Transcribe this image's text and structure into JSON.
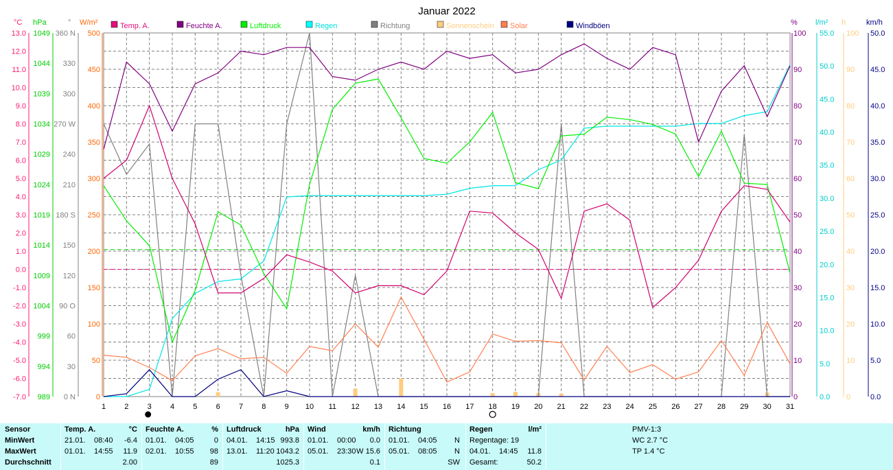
{
  "chart_data": {
    "type": "line",
    "title": "Januar 2022",
    "categories": [
      "1",
      "2",
      "3",
      "4",
      "5",
      "6",
      "7",
      "8",
      "9",
      "10",
      "11",
      "12",
      "13",
      "14",
      "15",
      "16",
      "17",
      "18",
      "19",
      "20",
      "21",
      "22",
      "23",
      "24",
      "25",
      "26",
      "27",
      "28",
      "29",
      "30",
      "31"
    ],
    "axes": {
      "left": [
        {
          "unit": "°C",
          "color": "#ff1a75",
          "min": -7,
          "max": 13,
          "ticks": [
            "13.0",
            "12.0",
            "11.0",
            "10.0",
            "9.0",
            "8.0",
            "7.0",
            "6.0",
            "5.0",
            "4.0",
            "3.0",
            "2.0",
            "1.0",
            "0.0",
            "-1.0",
            "-2.0",
            "-3.0",
            "-4.0",
            "-5.0",
            "-6.0",
            "-7.0"
          ]
        },
        {
          "unit": "hPa",
          "color": "#00cc00",
          "ticks": [
            "1049",
            "1044",
            "1039",
            "1034",
            "1029",
            "1024",
            "1019",
            "1014",
            "1009",
            "1004",
            "999",
            "994",
            "989"
          ]
        },
        {
          "unit": "°",
          "color": "#808080",
          "ticks": [
            "360 N",
            "330",
            "300",
            "270 W",
            "240",
            "210",
            "180 S",
            "150",
            "120",
            "90 O",
            "60",
            "30",
            "0 N"
          ]
        },
        {
          "unit": "W/m²",
          "color": "#ff6600",
          "ticks": [
            "500",
            "450",
            "400",
            "350",
            "300",
            "250",
            "200",
            "150",
            "100",
            "50",
            "0"
          ]
        }
      ],
      "right": [
        {
          "unit": "%",
          "color": "#800080",
          "ticks": [
            "100",
            "90",
            "80",
            "70",
            "60",
            "50",
            "40",
            "30",
            "20",
            "10",
            "0"
          ]
        },
        {
          "unit": "l/m²",
          "color": "#00cccc",
          "ticks": [
            "55.0",
            "50.0",
            "45.0",
            "40.0",
            "35.0",
            "30.0",
            "25.0",
            "20.0",
            "15.0",
            "10.0",
            "5.0",
            "0.0"
          ]
        },
        {
          "unit": "h",
          "color": "#ffcc80",
          "ticks": [
            "100",
            "90",
            "80",
            "70",
            "60",
            "50",
            "40",
            "30",
            "20",
            "10",
            "0"
          ]
        },
        {
          "unit": "km/h",
          "color": "#000080",
          "ticks": [
            "50.0",
            "45.0",
            "40.0",
            "35.0",
            "30.0",
            "25.0",
            "20.0",
            "15.0",
            "10.0",
            "5.0",
            "0.0"
          ]
        }
      ]
    },
    "legend": [
      {
        "name": "Temp. A.",
        "color": "#e0107a"
      },
      {
        "name": "Feuchte A.",
        "color": "#800080"
      },
      {
        "name": "Luftdruck",
        "color": "#00ee00"
      },
      {
        "name": "Regen",
        "color": "#00ffff"
      },
      {
        "name": "Richtung",
        "color": "#808080"
      },
      {
        "name": "Sonnenschein",
        "color": "#ffcc80"
      },
      {
        "name": "Solar",
        "color": "#ff7f50"
      },
      {
        "name": "Windböen",
        "color": "#000080"
      }
    ],
    "series": [
      {
        "name": "Temp. A.",
        "color": "#d0006f",
        "unit": "°C",
        "values": [
          5.0,
          6.0,
          9.0,
          5.0,
          2.5,
          -1.3,
          -1.3,
          -0.5,
          0.8,
          0.4,
          -0.1,
          -1.3,
          -0.9,
          -0.9,
          -1.4,
          -0.1,
          3.2,
          3.1,
          2.0,
          1.1,
          -1.6,
          3.2,
          3.6,
          2.7,
          -2.1,
          -1.0,
          0.5,
          3.2,
          4.6,
          4.4,
          2.6
        ]
      },
      {
        "name": "Feuchte A.",
        "color": "#800080",
        "unit": "%",
        "values": [
          68,
          92,
          86,
          73,
          86,
          89,
          95,
          94,
          96,
          96,
          88,
          87,
          90,
          92,
          90,
          95,
          93,
          94,
          89,
          90,
          94,
          97,
          93,
          90,
          96,
          94,
          70,
          84,
          91,
          77,
          91
        ]
      },
      {
        "name": "Luftdruck",
        "color": "#00ee00",
        "unit": "hPa",
        "values": [
          1023.8,
          1018.0,
          1013.9,
          998.0,
          1006.5,
          1019.5,
          1017.3,
          1009.3,
          1003.5,
          1024.0,
          1036.4,
          1040.7,
          1041.4,
          1035.0,
          1028.3,
          1027.5,
          1031.0,
          1035.9,
          1024.3,
          1023.3,
          1032.0,
          1032.3,
          1035.1,
          1034.7,
          1033.9,
          1032.3,
          1025.3,
          1032.8,
          1024.2,
          1024.0,
          1009.4
        ]
      },
      {
        "name": "Regen",
        "color": "#00e5e5",
        "unit": "l/m²",
        "values": [
          0.0,
          0.0,
          1.1,
          11.8,
          15.6,
          17.4,
          17.8,
          20.5,
          30.2,
          30.4,
          30.4,
          30.4,
          30.4,
          30.4,
          30.4,
          30.6,
          31.5,
          31.9,
          31.9,
          34.3,
          35.8,
          40.6,
          40.9,
          40.9,
          40.9,
          40.9,
          41.3,
          41.3,
          42.5,
          43.1,
          50.2
        ]
      },
      {
        "name": "Richtung",
        "color": "#808080",
        "unit": "°",
        "values": [
          270,
          220,
          250,
          0,
          270,
          270,
          120,
          0,
          270,
          360,
          0,
          120,
          0,
          0,
          0,
          0,
          0,
          0,
          0,
          0,
          270,
          0,
          0,
          0,
          0,
          0,
          0,
          0,
          260,
          0,
          0
        ]
      },
      {
        "name": "Solar",
        "color": "#ff7f50",
        "unit": "W/m²",
        "values": [
          57,
          54,
          40,
          22,
          56,
          66,
          52,
          54,
          32,
          69,
          63,
          100,
          68,
          137,
          79,
          20,
          34,
          86,
          76,
          77,
          74,
          23,
          69,
          33,
          44,
          24,
          34,
          77,
          29,
          102,
          45
        ]
      },
      {
        "name": "Windböen",
        "color": "#000080",
        "unit": "km/h",
        "values": [
          0,
          0.4,
          3.7,
          0,
          0,
          2.4,
          3.7,
          0,
          0.8,
          0,
          0,
          0,
          0,
          0,
          0,
          0,
          0,
          0,
          0,
          0,
          0,
          0,
          0,
          0,
          0,
          0,
          0,
          0,
          0,
          0,
          0
        ]
      },
      {
        "name": "Sonnenschein",
        "color": "#ffcc80",
        "unit": "h",
        "type": "bar",
        "values": [
          0,
          0,
          0,
          0,
          0,
          1.2,
          0,
          0,
          0,
          0,
          0,
          2.2,
          0,
          5.0,
          0,
          0,
          0,
          1.0,
          1.3,
          1.0,
          0.8,
          0,
          0,
          0,
          0,
          0,
          0,
          0,
          0,
          1.1,
          0
        ]
      }
    ],
    "reference_lines": [
      {
        "color": "#00cc00",
        "value": 1013.25,
        "style": "dashed"
      },
      {
        "color": "#e0107a",
        "value": 0,
        "style": "dashed"
      }
    ],
    "moon_phases": [
      {
        "day": "3",
        "phase": "new"
      },
      {
        "day": "18",
        "phase": "full"
      }
    ],
    "grid": true
  },
  "stats": {
    "sensor": {
      "title": "Sensor",
      "rows": [
        "MinWert",
        "MaxWert",
        "Durchschnitt"
      ]
    },
    "temp": {
      "title": "Temp. A.",
      "unit": "°C",
      "min_date": "21.01.",
      "min_time": "08:40",
      "min": "-6.4",
      "max_date": "01.01.",
      "max_time": "14:55",
      "max": "11.9",
      "avg": "2.00"
    },
    "feuchte": {
      "title": "Feuchte A.",
      "unit": "%",
      "min_date": "01.01.",
      "min_time": "04:05",
      "min": "0",
      "max_date": "02.01.",
      "max_time": "10:55",
      "max": "98",
      "avg": "89"
    },
    "luftdruck": {
      "title": "Luftdruck",
      "unit": "hPa",
      "min_date": "04.01.",
      "min_time": "14:15",
      "min": "993.8",
      "max_date": "13.01.",
      "max_time": "11:20",
      "max": "1043.2",
      "avg": "1025.3"
    },
    "wind": {
      "title": "Wind",
      "unit": "km/h",
      "min_date": "01.01.",
      "min_time": "00:00",
      "min": "0.0",
      "max_date": "05.01.",
      "max_time": "23:30",
      "max": "W 15.6",
      "avg": "0.1"
    },
    "richtung": {
      "title": "Richtung",
      "min_date": "01.01.",
      "min_time": "04:05",
      "min": "N",
      "max_date": "05.01.",
      "max_time": "08:05",
      "max": "N",
      "avg": "SW"
    },
    "regen": {
      "title": "Regen",
      "unit": "l/m²",
      "row1": "Regentage: 19",
      "row2_date": "04.01.",
      "row2_time": "14:45",
      "row2_val": "11.8",
      "row3_label": "Gesamt:",
      "row3_val": "50.2"
    },
    "pmv": {
      "title": "PMV-1:3",
      "wc": "WC 2.7 °C",
      "tp": "TP 1.4 °C"
    }
  }
}
